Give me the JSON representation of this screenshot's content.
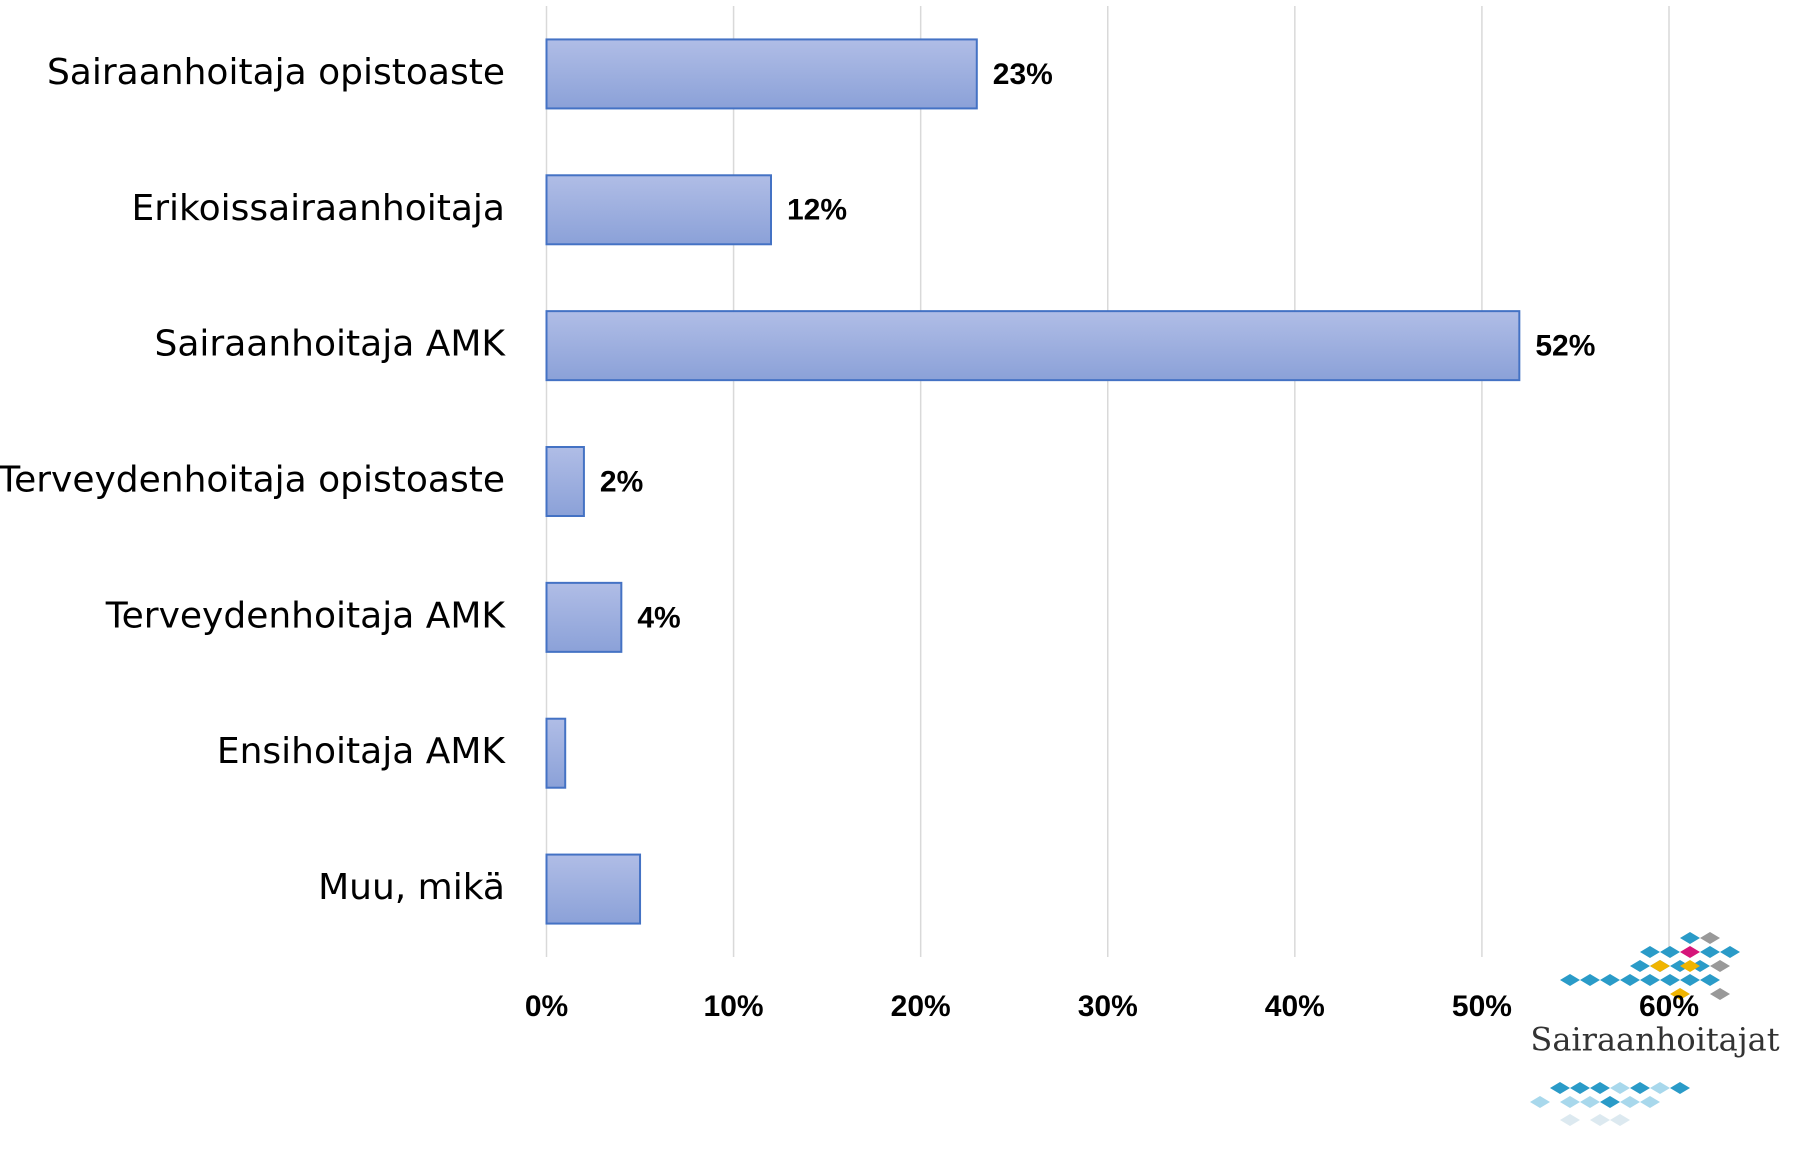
{
  "chart_data": {
    "type": "bar",
    "orientation": "horizontal",
    "categories": [
      "Sairaanhoitaja opistoaste",
      "Erikoissairaanhoitaja",
      "Sairaanhoitaja AMK",
      "Terveydenhoitaja opistoaste",
      "Terveydenhoitaja AMK",
      "Ensihoitaja AMK",
      "Muu, mikä"
    ],
    "values": [
      23,
      12,
      52,
      2,
      4,
      1,
      5
    ],
    "value_labels": [
      "23%",
      "12%",
      "52%",
      "2%",
      "4%",
      null,
      null
    ],
    "color": "#4472c4",
    "xlim": [
      0,
      60
    ],
    "xticks": [
      {
        "value": 0,
        "label": "0%"
      },
      {
        "value": 10,
        "label": "10%"
      },
      {
        "value": 20,
        "label": "20%"
      },
      {
        "value": 30,
        "label": "30%"
      },
      {
        "value": 40,
        "label": "40%"
      },
      {
        "value": 50,
        "label": "50%"
      },
      {
        "value": 60,
        "label": "60%"
      }
    ],
    "grid": true
  },
  "logo": {
    "text": "Sairaanhoitajat"
  }
}
